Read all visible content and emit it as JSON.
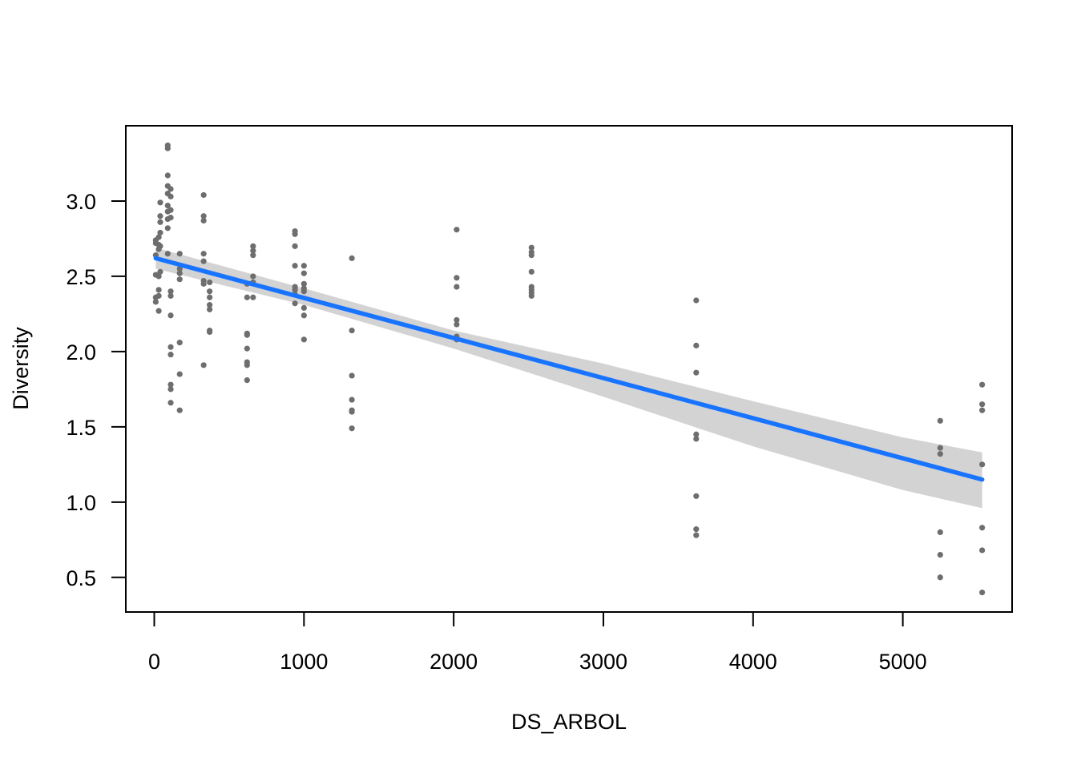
{
  "chart_data": {
    "type": "scatter",
    "title": "",
    "xlabel": "DS_ARBOL",
    "ylabel": "Diversity",
    "xlim": [
      -190,
      5730
    ],
    "ylim": [
      0.27,
      3.5
    ],
    "xticks": [
      0,
      1000,
      2000,
      3000,
      4000,
      5000
    ],
    "xtick_labels": [
      "0",
      "1000",
      "2000",
      "3000",
      "4000",
      "5000"
    ],
    "yticks": [
      0.5,
      1.0,
      1.5,
      2.0,
      2.5,
      3.0
    ],
    "ytick_labels": [
      "0.5",
      "1.0",
      "1.5",
      "2.0",
      "2.5",
      "3.0"
    ],
    "grid": false,
    "legend": "none",
    "colors": {
      "points": "#6e6e6e",
      "fit_line": "#1874ff",
      "confidence_band": "#d3d3d3",
      "frame": "#000000"
    },
    "points": [
      [
        10,
        2.74
      ],
      [
        10,
        2.72
      ],
      [
        10,
        2.64
      ],
      [
        10,
        2.51
      ],
      [
        10,
        2.36
      ],
      [
        10,
        2.33
      ],
      [
        30,
        2.76
      ],
      [
        30,
        2.71
      ],
      [
        30,
        2.68
      ],
      [
        30,
        2.5
      ],
      [
        30,
        2.41
      ],
      [
        30,
        2.37
      ],
      [
        30,
        2.27
      ],
      [
        40,
        2.99
      ],
      [
        40,
        2.9
      ],
      [
        40,
        2.86
      ],
      [
        40,
        2.79
      ],
      [
        40,
        2.7
      ],
      [
        40,
        2.53
      ],
      [
        90,
        3.37
      ],
      [
        90,
        3.35
      ],
      [
        90,
        3.17
      ],
      [
        90,
        3.1
      ],
      [
        90,
        3.05
      ],
      [
        90,
        2.97
      ],
      [
        90,
        2.93
      ],
      [
        90,
        2.88
      ],
      [
        90,
        2.82
      ],
      [
        90,
        2.65
      ],
      [
        110,
        3.08
      ],
      [
        110,
        3.03
      ],
      [
        110,
        2.94
      ],
      [
        110,
        2.89
      ],
      [
        110,
        2.4
      ],
      [
        110,
        2.37
      ],
      [
        110,
        2.24
      ],
      [
        110,
        2.03
      ],
      [
        110,
        1.98
      ],
      [
        110,
        1.78
      ],
      [
        110,
        1.75
      ],
      [
        110,
        1.66
      ],
      [
        170,
        2.65
      ],
      [
        170,
        2.55
      ],
      [
        170,
        2.52
      ],
      [
        170,
        2.48
      ],
      [
        170,
        2.06
      ],
      [
        170,
        1.85
      ],
      [
        170,
        1.61
      ],
      [
        330,
        3.04
      ],
      [
        330,
        2.9
      ],
      [
        330,
        2.87
      ],
      [
        330,
        2.65
      ],
      [
        330,
        2.6
      ],
      [
        330,
        2.47
      ],
      [
        330,
        2.45
      ],
      [
        330,
        1.91
      ],
      [
        370,
        2.46
      ],
      [
        370,
        2.4
      ],
      [
        370,
        2.36
      ],
      [
        370,
        2.31
      ],
      [
        370,
        2.28
      ],
      [
        370,
        2.14
      ],
      [
        370,
        2.13
      ],
      [
        620,
        2.45
      ],
      [
        620,
        2.36
      ],
      [
        620,
        2.12
      ],
      [
        620,
        2.11
      ],
      [
        620,
        2.02
      ],
      [
        620,
        1.93
      ],
      [
        620,
        1.91
      ],
      [
        620,
        1.81
      ],
      [
        660,
        2.7
      ],
      [
        660,
        2.67
      ],
      [
        660,
        2.64
      ],
      [
        660,
        2.5
      ],
      [
        660,
        2.46
      ],
      [
        660,
        2.36
      ],
      [
        940,
        2.8
      ],
      [
        940,
        2.78
      ],
      [
        940,
        2.7
      ],
      [
        940,
        2.57
      ],
      [
        940,
        2.43
      ],
      [
        940,
        2.41
      ],
      [
        940,
        2.38
      ],
      [
        940,
        2.32
      ],
      [
        1000,
        2.57
      ],
      [
        1000,
        2.52
      ],
      [
        1000,
        2.45
      ],
      [
        1000,
        2.42
      ],
      [
        1000,
        2.4
      ],
      [
        1000,
        2.29
      ],
      [
        1000,
        2.24
      ],
      [
        1000,
        2.08
      ],
      [
        1320,
        2.62
      ],
      [
        1320,
        2.14
      ],
      [
        1320,
        1.84
      ],
      [
        1320,
        1.68
      ],
      [
        1320,
        1.61
      ],
      [
        1320,
        1.6
      ],
      [
        1320,
        1.49
      ],
      [
        2020,
        2.81
      ],
      [
        2020,
        2.49
      ],
      [
        2020,
        2.43
      ],
      [
        2020,
        2.21
      ],
      [
        2020,
        2.18
      ],
      [
        2020,
        2.1
      ],
      [
        2020,
        2.08
      ],
      [
        2520,
        2.69
      ],
      [
        2520,
        2.66
      ],
      [
        2520,
        2.64
      ],
      [
        2520,
        2.53
      ],
      [
        2520,
        2.43
      ],
      [
        2520,
        2.41
      ],
      [
        2520,
        2.39
      ],
      [
        2520,
        2.37
      ],
      [
        3620,
        2.34
      ],
      [
        3620,
        2.04
      ],
      [
        3620,
        1.86
      ],
      [
        3620,
        1.45
      ],
      [
        3620,
        1.42
      ],
      [
        3620,
        1.04
      ],
      [
        3620,
        0.82
      ],
      [
        3620,
        0.78
      ],
      [
        5250,
        1.54
      ],
      [
        5250,
        1.36
      ],
      [
        5250,
        1.32
      ],
      [
        5250,
        0.8
      ],
      [
        5250,
        0.65
      ],
      [
        5250,
        0.5
      ],
      [
        5530,
        1.78
      ],
      [
        5530,
        1.65
      ],
      [
        5530,
        1.61
      ],
      [
        5530,
        1.25
      ],
      [
        5530,
        0.83
      ],
      [
        5530,
        0.68
      ],
      [
        5530,
        0.4
      ]
    ],
    "fit_line": {
      "x": [
        10,
        5530
      ],
      "y": [
        2.62,
        1.15
      ]
    },
    "confidence_band": {
      "x": [
        10,
        1000,
        2000,
        3000,
        4000,
        5000,
        5530
      ],
      "upper": [
        2.69,
        2.42,
        2.14,
        1.92,
        1.67,
        1.43,
        1.33
      ],
      "lower": [
        2.55,
        2.31,
        2.02,
        1.7,
        1.37,
        1.08,
        0.96
      ]
    }
  }
}
